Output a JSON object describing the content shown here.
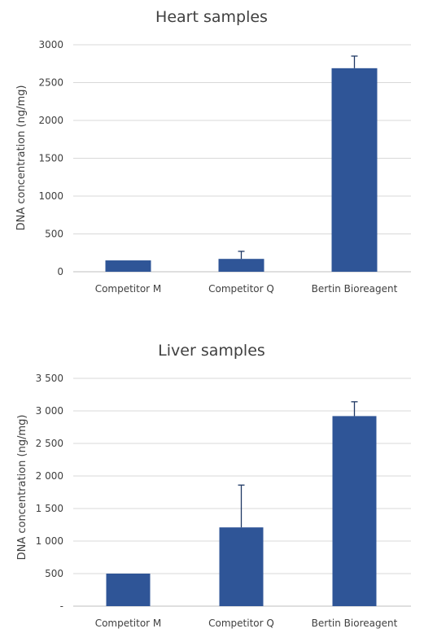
{
  "chart_data": [
    {
      "type": "bar",
      "title": "Heart samples",
      "ylabel": "DNA concentration (ng/mg)",
      "xlabel": "",
      "categories": [
        "Competitor M",
        "Competitor Q",
        "Bertin Bioreagent"
      ],
      "values": [
        150,
        170,
        2690
      ],
      "error_plus": [
        0,
        100,
        160
      ],
      "ylim": [
        0,
        3000
      ],
      "yticks": [
        0,
        500,
        1000,
        1500,
        2000,
        2500,
        3000
      ],
      "ytick_labels": [
        "0",
        "500",
        "1000",
        "1500",
        "2000",
        "2500",
        "3000"
      ],
      "grid": true,
      "bar_color": "#2f5597"
    },
    {
      "type": "bar",
      "title": "Liver samples",
      "ylabel": "DNA concentration (ng/mg)",
      "xlabel": "",
      "categories": [
        "Competitor M",
        "Competitor Q",
        "Bertin Bioreagent"
      ],
      "values": [
        500,
        1210,
        2920
      ],
      "error_plus": [
        0,
        650,
        220
      ],
      "ylim": [
        0,
        3500
      ],
      "yticks": [
        0,
        500,
        1000,
        1500,
        2000,
        2500,
        3000,
        3500
      ],
      "ytick_labels": [
        "-",
        "500",
        "1 000",
        "1 500",
        "2 000",
        "2 500",
        "3 000",
        "3 500"
      ],
      "grid": true,
      "bar_color": "#2f5597"
    }
  ]
}
